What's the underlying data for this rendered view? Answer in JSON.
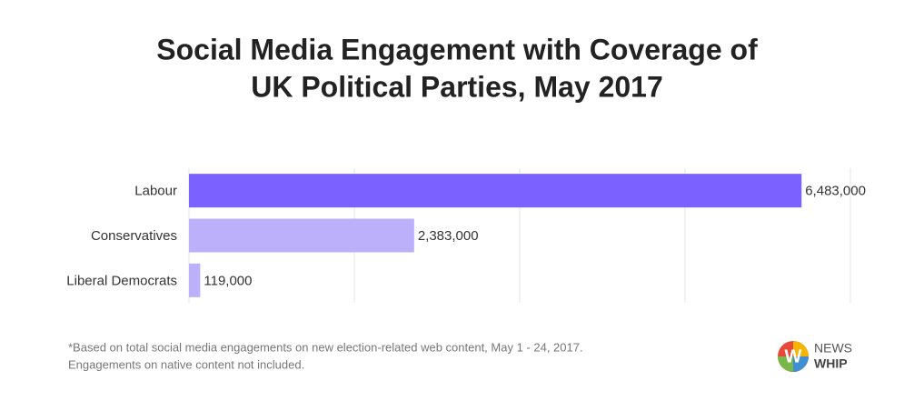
{
  "chart_data": {
    "type": "hbar",
    "title": [
      "Social Media Engagement with Coverage of",
      "UK Political Parties, May 2017"
    ],
    "categories": [
      "Labour",
      "Conservatives",
      "Liberal Democrats"
    ],
    "values": [
      6483000,
      2383000,
      119000
    ],
    "value_labels": [
      "6,483,000",
      "2,383,000",
      "119,000"
    ],
    "colors": [
      "#7b61ff",
      "#bdb0fb",
      "#bdb0fb"
    ],
    "xlim": [
      0,
      7000000
    ],
    "xticks": [
      0,
      1750000,
      3500000,
      5250000,
      7000000
    ],
    "grid": true,
    "footnote": [
      "*Based on total social media engagements on new election-related web content, May 1 - 24, 2017.",
      "Engagements on native content not included."
    ]
  },
  "logo": {
    "mark": "W",
    "line1": "NEWS",
    "line2": "WHIP"
  }
}
